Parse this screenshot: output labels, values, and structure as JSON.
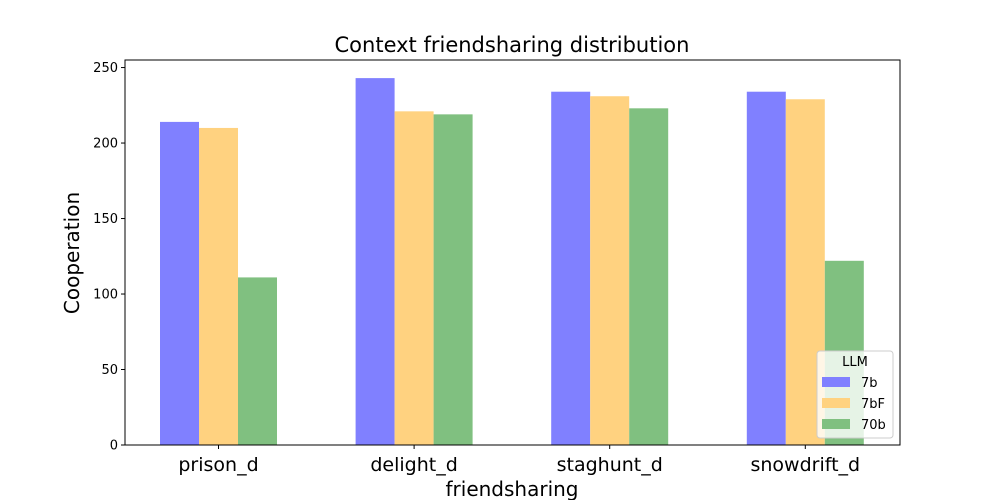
{
  "chart_data": {
    "type": "bar",
    "title": "Context friendsharing distribution",
    "xlabel": "friendsharing",
    "ylabel": "Cooperation",
    "categories": [
      "prison_d",
      "delight_d",
      "staghunt_d",
      "snowdrift_d"
    ],
    "series": [
      {
        "name": "7b",
        "color": "#8080ff",
        "values": [
          214,
          243,
          234,
          234
        ]
      },
      {
        "name": "7bF",
        "color": "#ffd280",
        "values": [
          210,
          221,
          231,
          229
        ]
      },
      {
        "name": "70b",
        "color": "#80c080",
        "values": [
          111,
          219,
          223,
          122
        ]
      }
    ],
    "ylim": [
      0,
      255
    ],
    "yticks": [
      0,
      50,
      100,
      150,
      200,
      250
    ],
    "grid": false,
    "legend": {
      "title": "LLM",
      "position": "lower-right"
    }
  }
}
